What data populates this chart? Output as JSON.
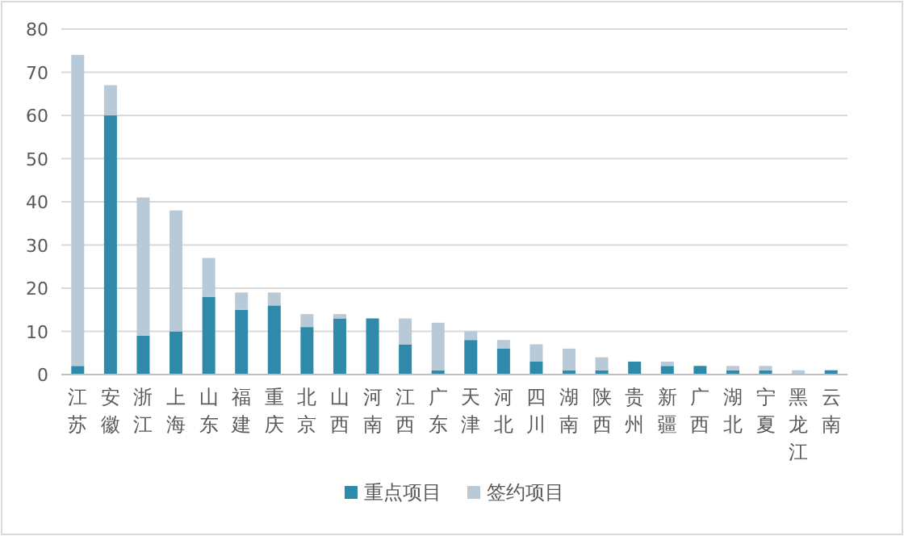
{
  "chart_data": {
    "type": "bar",
    "stacked": true,
    "categories": [
      "江苏",
      "安徽",
      "浙江",
      "上海",
      "山东",
      "福建",
      "重庆",
      "北京",
      "山西",
      "河南",
      "江西",
      "广东",
      "天津",
      "河北",
      "四川",
      "湖南",
      "陕西",
      "贵州",
      "新疆",
      "广西",
      "湖北",
      "宁夏",
      "黑龙江",
      "云南"
    ],
    "series": [
      {
        "name": "重点项目",
        "color": "#2e8aa8",
        "values": [
          2,
          60,
          9,
          10,
          18,
          15,
          16,
          11,
          13,
          13,
          7,
          1,
          8,
          6,
          3,
          1,
          1,
          3,
          2,
          2,
          1,
          1,
          0,
          1
        ]
      },
      {
        "name": "签约项目",
        "color": "#b8c9d8",
        "values": [
          72,
          7,
          32,
          28,
          9,
          4,
          3,
          3,
          1,
          0,
          6,
          11,
          2,
          2,
          4,
          5,
          3,
          0,
          1,
          0,
          1,
          1,
          1,
          0
        ]
      }
    ],
    "ylim": [
      0,
      80
    ],
    "yticks": [
      0,
      10,
      20,
      30,
      40,
      50,
      60,
      70,
      80
    ],
    "grid": "y",
    "legend": "bottom"
  }
}
